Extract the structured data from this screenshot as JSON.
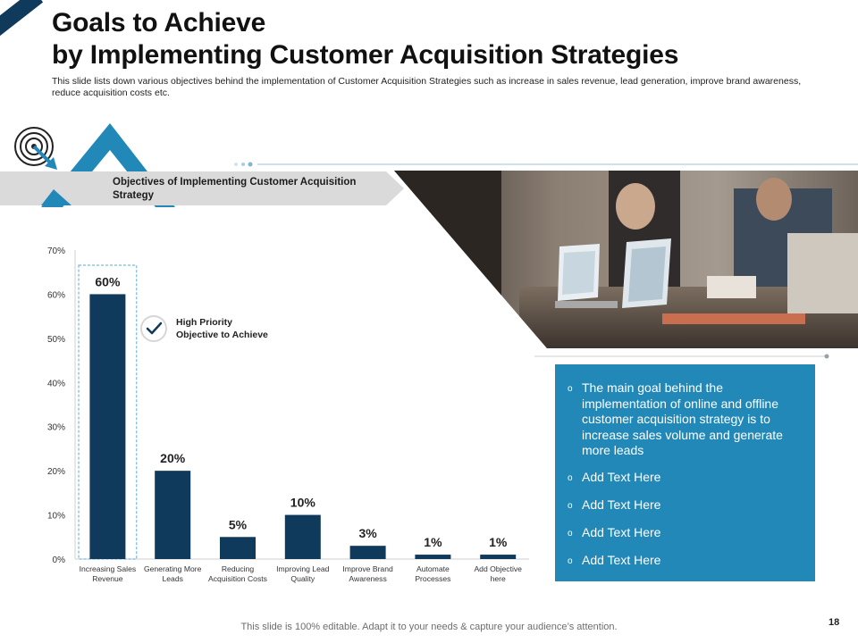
{
  "slide": {
    "title_line1": "Goals to Achieve",
    "title_line2": "by Implementing Customer Acquisition Strategies",
    "subtitle": "This slide lists down various objectives behind the implementation of Customer Acquisition Strategies such as increase in sales revenue, lead generation, improve brand awareness, reduce acquisition costs etc.",
    "banner_label": "Objectives of Implementing Customer Acquisition Strategy",
    "footer": "This slide is 100% editable. Adapt it to your needs & capture your audience’s attention.",
    "page_number": "18"
  },
  "colors": {
    "bar": "#0f3a5c",
    "accent": "#2188b8",
    "banner": "#dadada",
    "axis": "#cfcfcf",
    "highlight_border": "#5aa9d0"
  },
  "icons": [
    "target-arrow-icon",
    "checkmark-icon",
    "chevron-stack-icon"
  ],
  "chart_data": {
    "type": "bar",
    "categories": [
      "Increasing Sales Revenue",
      "Generating More Leads",
      "Reducing Acquisition Costs",
      "Improving Lead Quality",
      "Improve Brand Awareness",
      "Automate Processes",
      "Add Objective here"
    ],
    "category_lines": [
      [
        "Increasing Sales",
        "Revenue"
      ],
      [
        "Generating More",
        "Leads"
      ],
      [
        "Reducing",
        "Acquisition Costs"
      ],
      [
        "Improving Lead",
        "Quality"
      ],
      [
        "Improve Brand",
        "Awareness"
      ],
      [
        "Automate",
        "Processes"
      ],
      [
        "Add Objective",
        "here"
      ]
    ],
    "values": [
      60,
      20,
      5,
      10,
      3,
      1,
      1
    ],
    "value_labels": [
      "60%",
      "20%",
      "5%",
      "10%",
      "3%",
      "1%",
      "1%"
    ],
    "yticks": [
      "0%",
      "10%",
      "20%",
      "30%",
      "40%",
      "50%",
      "60%",
      "70%"
    ],
    "ylim": [
      0,
      70
    ],
    "grid": false,
    "highlighted_index": 0,
    "callout": {
      "line1": "High Priority",
      "line2": "Objective to Achieve"
    }
  },
  "info": {
    "bullet_glyph": "o",
    "items": [
      "The main goal behind the implementation of online and offline customer acquisition strategy is to increase sales volume and generate more leads",
      "Add Text Here",
      "Add Text Here",
      "Add Text Here",
      "Add Text Here"
    ]
  }
}
